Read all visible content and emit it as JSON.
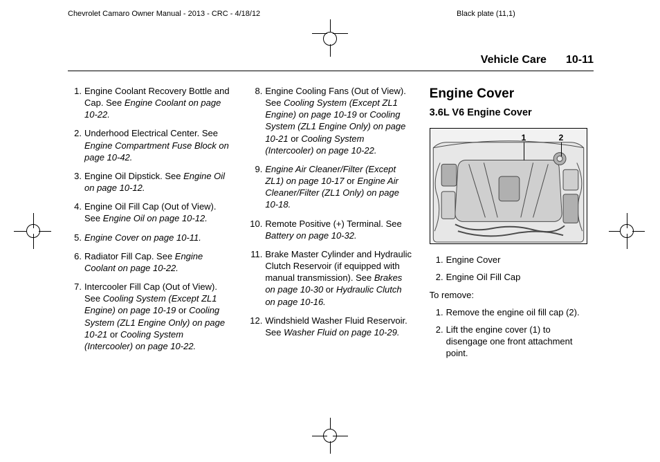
{
  "meta": {
    "doc_header_left": "Chevrolet Camaro Owner Manual - 2013 - CRC - 4/18/12",
    "doc_header_right": "Black plate (11,1)"
  },
  "running_head": {
    "section_title": "Vehicle Care",
    "page_number": "10-11"
  },
  "column1_items": [
    {
      "text": "Engine Coolant Recovery Bottle and Cap. See ",
      "ital": "Engine Coolant on page 10-22.",
      "tail": ""
    },
    {
      "text": "Underhood Electrical Center. See ",
      "ital": "Engine Compartment Fuse Block on page 10-42.",
      "tail": ""
    },
    {
      "text": "Engine Oil Dipstick. See ",
      "ital": "Engine Oil on page 10-12.",
      "tail": ""
    },
    {
      "text": "Engine Oil Fill Cap (Out of View). See ",
      "ital": "Engine Oil on page 10-12.",
      "tail": ""
    },
    {
      "text": "",
      "ital": "Engine Cover on page 10-11.",
      "tail": ""
    },
    {
      "text": "Radiator Fill Cap. See ",
      "ital": "Engine Coolant on page 10-22.",
      "tail": ""
    },
    {
      "text": "Intercooler Fill Cap (Out of View). See ",
      "ital": "Cooling System (Except ZL1 Engine) on page 10-19",
      "tail": " or ",
      "ital2": "Cooling System (ZL1 Engine Only) on page 10-21",
      "tail2": " or ",
      "ital3": "Cooling System (Intercooler) on page 10-22.",
      "tail3": ""
    }
  ],
  "column2_items": [
    {
      "text": "Engine Cooling Fans (Out of View). See ",
      "ital": "Cooling System (Except ZL1 Engine) on page 10-19",
      "tail": " or ",
      "ital2": "Cooling System (ZL1 Engine Only) on page 10-21",
      "tail2": " or ",
      "ital3": "Cooling System (Intercooler) on page 10-22.",
      "tail3": ""
    },
    {
      "text": "",
      "ital": "Engine Air Cleaner/Filter (Except ZL1) on page 10-17",
      "tail": " or ",
      "ital2": "Engine Air Cleaner/Filter (ZL1 Only) on page 10-18.",
      "tail2": ""
    },
    {
      "text": "Remote Positive (+) Terminal. See ",
      "ital": "Battery on page 10-32.",
      "tail": ""
    },
    {
      "text": "Brake Master Cylinder and Hydraulic Clutch Reservoir (if equipped with manual transmission). See ",
      "ital": "Brakes on page 10-30",
      "tail": " or ",
      "ital2": "Hydraulic Clutch on page 10-16.",
      "tail2": ""
    },
    {
      "text": "Windshield Washer Fluid Reservoir. See ",
      "ital": "Washer Fluid on page 10-29.",
      "tail": ""
    }
  ],
  "column3": {
    "heading": "Engine Cover",
    "subheading": "3.6L V6 Engine Cover",
    "callouts": {
      "c1": "1",
      "c2": "2"
    },
    "legend": [
      "Engine Cover",
      "Engine Oil Fill Cap"
    ],
    "to_remove_label": "To remove:",
    "steps": [
      "Remove the engine oil fill cap (2).",
      "Lift the engine cover (1) to disengage one front attachment point."
    ]
  },
  "figure": {
    "stroke": "#4a4a4a",
    "fill_light": "#e7e7e7",
    "fill_mid": "#cfcfcf",
    "fill_dark": "#b0b0b0"
  }
}
